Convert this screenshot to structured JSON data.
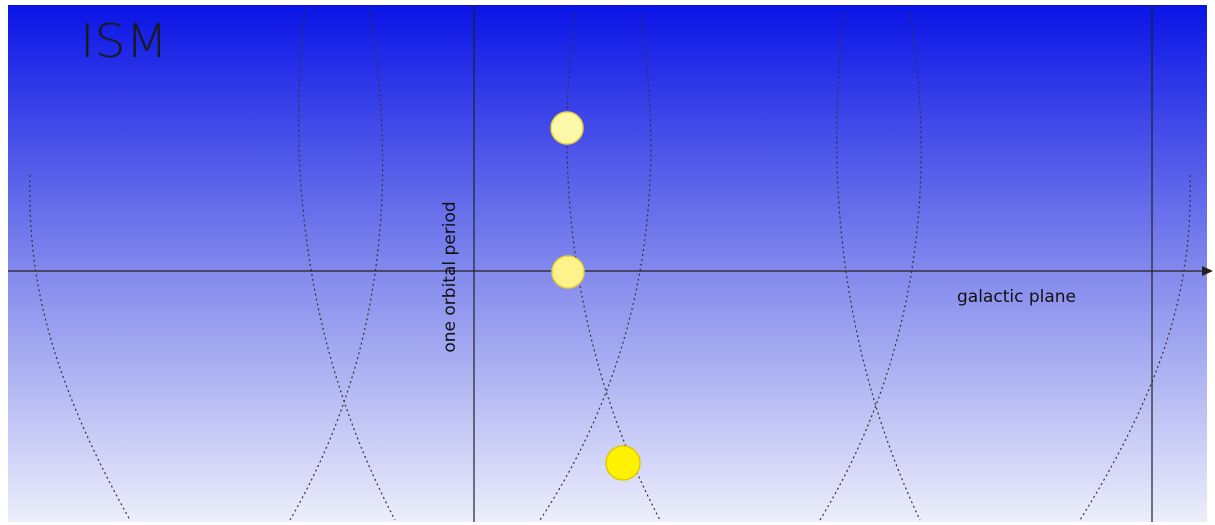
{
  "labels": {
    "region": "ISM",
    "vertical_axis": "one orbital period",
    "horizontal_axis": "galactic plane"
  }
}
